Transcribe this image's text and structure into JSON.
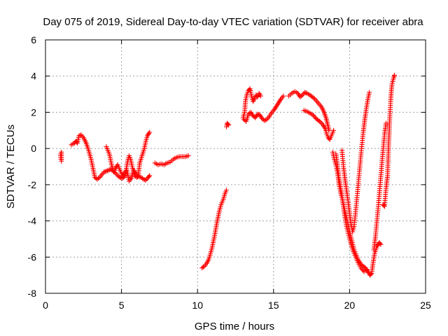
{
  "chart_data": {
    "type": "scatter",
    "title": "Day 075 of 2019, Sidereal Day-to-day VTEC variation (SDTVAR) for receiver abra",
    "xlabel": "GPS time / hours",
    "ylabel": "SDTVAR / TECUs",
    "xlim": [
      0,
      25
    ],
    "ylim": [
      -8,
      6
    ],
    "xticks": [
      0,
      5,
      10,
      15,
      20,
      25
    ],
    "yticks": [
      -8,
      -6,
      -4,
      -2,
      0,
      2,
      4,
      6
    ],
    "xtick_labels": [
      "0",
      "5",
      "10",
      "15",
      "20",
      "25"
    ],
    "ytick_labels": [
      "-8",
      "-6",
      "-4",
      "-2",
      "0",
      "2",
      "4",
      "6"
    ],
    "grid": true,
    "marker": "+",
    "series": [
      {
        "name": "abra",
        "color": "#ff0000",
        "segments": [
          [
            [
              1.0,
              -0.3
            ],
            [
              1.0,
              -0.5
            ],
            [
              1.05,
              -0.7
            ],
            [
              1.05,
              -0.2
            ]
          ],
          [
            [
              1.7,
              0.2
            ],
            [
              1.9,
              0.3
            ],
            [
              2.0,
              0.4
            ],
            [
              2.1,
              0.3
            ],
            [
              2.2,
              0.7
            ],
            [
              2.35,
              0.75
            ],
            [
              2.5,
              0.6
            ],
            [
              2.65,
              0.35
            ],
            [
              2.8,
              0.0
            ],
            [
              2.9,
              -0.3
            ],
            [
              3.0,
              -0.6
            ],
            [
              3.1,
              -1.0
            ],
            [
              3.2,
              -1.4
            ],
            [
              3.25,
              -1.6
            ],
            [
              3.4,
              -1.7
            ],
            [
              3.55,
              -1.6
            ],
            [
              3.7,
              -1.45
            ],
            [
              3.85,
              -1.3
            ],
            [
              4.0,
              -1.25
            ],
            [
              4.15,
              -1.2
            ],
            [
              4.3,
              -1.15
            ],
            [
              4.45,
              -1.25
            ],
            [
              4.6,
              -1.35
            ],
            [
              4.75,
              -1.5
            ],
            [
              4.9,
              -1.6
            ],
            [
              5.05,
              -1.65
            ],
            [
              5.2,
              -1.55
            ],
            [
              5.3,
              -1.2
            ],
            [
              5.4,
              -0.7
            ],
            [
              5.5,
              -0.4
            ],
            [
              5.6,
              -0.6
            ],
            [
              5.7,
              -1.0
            ],
            [
              5.8,
              -1.3
            ],
            [
              5.9,
              -1.55
            ],
            [
              6.0,
              -1.6
            ],
            [
              6.1,
              -1.5
            ],
            [
              6.2,
              -0.8
            ],
            [
              6.35,
              -0.4
            ],
            [
              6.5,
              0.0
            ],
            [
              6.6,
              0.4
            ],
            [
              6.7,
              0.7
            ],
            [
              6.85,
              0.9
            ]
          ],
          [
            [
              4.0,
              0.1
            ],
            [
              4.2,
              -0.3
            ],
            [
              4.35,
              -0.9
            ],
            [
              4.5,
              -1.3
            ],
            [
              4.6,
              -1.1
            ],
            [
              4.75,
              -0.9
            ],
            [
              4.9,
              -1.2
            ],
            [
              5.05,
              -1.5
            ],
            [
              5.35,
              -1.2
            ],
            [
              5.5,
              -1.8
            ],
            [
              5.65,
              -1.65
            ],
            [
              5.8,
              -1.2
            ],
            [
              5.95,
              -1.4
            ],
            [
              6.1,
              -1.55
            ],
            [
              6.3,
              -1.6
            ],
            [
              6.45,
              -1.7
            ],
            [
              6.6,
              -1.75
            ],
            [
              6.75,
              -1.6
            ],
            [
              6.85,
              -1.5
            ]
          ],
          [
            [
              7.2,
              -0.8
            ],
            [
              7.4,
              -0.9
            ],
            [
              7.6,
              -0.85
            ],
            [
              7.8,
              -0.9
            ],
            [
              8.0,
              -0.8
            ],
            [
              8.2,
              -0.75
            ],
            [
              8.4,
              -0.6
            ],
            [
              8.6,
              -0.5
            ],
            [
              8.8,
              -0.45
            ],
            [
              9.0,
              -0.45
            ],
            [
              9.2,
              -0.45
            ],
            [
              9.4,
              -0.4
            ]
          ],
          [
            [
              10.3,
              -6.6
            ],
            [
              10.45,
              -6.5
            ],
            [
              10.6,
              -6.35
            ],
            [
              10.75,
              -6.1
            ],
            [
              10.85,
              -5.8
            ],
            [
              10.95,
              -5.5
            ],
            [
              11.05,
              -5.1
            ],
            [
              11.15,
              -4.7
            ],
            [
              11.25,
              -4.2
            ],
            [
              11.35,
              -3.8
            ],
            [
              11.45,
              -3.4
            ],
            [
              11.55,
              -3.1
            ],
            [
              11.7,
              -2.8
            ],
            [
              11.8,
              -2.5
            ],
            [
              11.9,
              -2.3
            ]
          ],
          [
            [
              11.9,
              1.2
            ],
            [
              11.95,
              1.4
            ],
            [
              12.05,
              1.3
            ]
          ],
          [
            [
              13.0,
              1.7
            ],
            [
              13.1,
              2.0
            ],
            [
              13.15,
              2.6
            ],
            [
              13.25,
              3.0
            ],
            [
              13.35,
              3.2
            ],
            [
              13.45,
              3.3
            ],
            [
              13.55,
              2.9
            ],
            [
              13.65,
              2.6
            ],
            [
              13.75,
              2.75
            ],
            [
              13.85,
              2.95
            ],
            [
              13.95,
              2.85
            ],
            [
              14.05,
              3.05
            ],
            [
              14.15,
              2.9
            ]
          ],
          [
            [
              13.05,
              1.6
            ],
            [
              13.2,
              1.5
            ],
            [
              13.35,
              1.9
            ],
            [
              13.5,
              2.0
            ],
            [
              13.65,
              1.8
            ],
            [
              13.8,
              1.7
            ],
            [
              13.95,
              1.9
            ],
            [
              14.1,
              1.85
            ],
            [
              14.25,
              1.65
            ],
            [
              14.4,
              1.55
            ],
            [
              14.55,
              1.6
            ],
            [
              14.7,
              1.75
            ],
            [
              14.9,
              2.0
            ],
            [
              15.05,
              2.15
            ],
            [
              15.2,
              2.35
            ],
            [
              15.35,
              2.55
            ],
            [
              15.5,
              2.75
            ],
            [
              15.65,
              2.9
            ]
          ],
          [
            [
              16.0,
              2.9
            ],
            [
              16.2,
              3.05
            ],
            [
              16.4,
              3.15
            ],
            [
              16.6,
              3.05
            ],
            [
              16.75,
              2.85
            ],
            [
              16.9,
              2.95
            ],
            [
              17.05,
              3.1
            ],
            [
              17.2,
              3.05
            ],
            [
              17.4,
              2.95
            ],
            [
              17.55,
              2.85
            ],
            [
              17.7,
              2.75
            ],
            [
              17.85,
              2.6
            ],
            [
              18.0,
              2.45
            ],
            [
              18.15,
              2.3
            ],
            [
              18.3,
              2.05
            ],
            [
              18.45,
              1.7
            ],
            [
              18.55,
              1.35
            ],
            [
              18.65,
              1.0
            ]
          ],
          [
            [
              17.0,
              2.1
            ],
            [
              17.2,
              2.05
            ],
            [
              17.4,
              1.95
            ],
            [
              17.6,
              1.85
            ],
            [
              17.8,
              1.65
            ],
            [
              17.95,
              1.55
            ],
            [
              18.1,
              1.45
            ],
            [
              18.25,
              1.3
            ],
            [
              18.4,
              1.1
            ],
            [
              18.5,
              0.8
            ],
            [
              18.6,
              0.6
            ],
            [
              18.7,
              0.5
            ],
            [
              18.85,
              0.8
            ],
            [
              18.95,
              1.0
            ]
          ],
          [
            [
              18.9,
              -0.2
            ],
            [
              19.0,
              -0.6
            ],
            [
              19.1,
              -0.9
            ],
            [
              19.2,
              -1.3
            ],
            [
              19.3,
              -1.9
            ],
            [
              19.4,
              -2.4
            ],
            [
              19.55,
              -2.9
            ],
            [
              19.7,
              -3.5
            ],
            [
              19.85,
              -4.0
            ],
            [
              20.0,
              -4.6
            ],
            [
              20.15,
              -5.1
            ],
            [
              20.3,
              -5.6
            ],
            [
              20.45,
              -5.9
            ],
            [
              20.6,
              -6.2
            ],
            [
              20.75,
              -6.4
            ],
            [
              20.9,
              -6.5
            ],
            [
              21.05,
              -6.6
            ],
            [
              21.2,
              -6.8
            ],
            [
              21.35,
              -7.0
            ],
            [
              21.45,
              -6.9
            ],
            [
              21.55,
              -6.3
            ],
            [
              21.65,
              -5.8
            ],
            [
              21.8,
              -5.4
            ],
            [
              21.95,
              -5.2
            ],
            [
              22.05,
              -5.3
            ]
          ],
          [
            [
              19.1,
              -0.3
            ],
            [
              19.2,
              -0.9
            ],
            [
              19.3,
              -1.6
            ],
            [
              19.4,
              -2.1
            ],
            [
              19.5,
              -2.6
            ],
            [
              19.6,
              -3.2
            ],
            [
              19.7,
              -3.8
            ],
            [
              19.8,
              -4.3
            ],
            [
              19.95,
              -4.8
            ],
            [
              20.1,
              -5.3
            ],
            [
              20.25,
              -5.7
            ],
            [
              20.4,
              -6.0
            ],
            [
              20.55,
              -6.3
            ],
            [
              20.75,
              -6.6
            ],
            [
              20.95,
              -6.8
            ],
            [
              21.15,
              -6.7
            ]
          ],
          [
            [
              19.5,
              -0.1
            ],
            [
              19.6,
              -1.0
            ],
            [
              19.7,
              -1.7
            ],
            [
              19.8,
              -2.3
            ],
            [
              19.9,
              -2.9
            ],
            [
              20.0,
              -3.6
            ],
            [
              20.1,
              -4.2
            ],
            [
              20.2,
              -4.6
            ],
            [
              20.3,
              -4.3
            ],
            [
              20.4,
              -3.5
            ],
            [
              20.5,
              -2.6
            ],
            [
              20.6,
              -1.7
            ],
            [
              20.7,
              -0.8
            ],
            [
              20.8,
              0.1
            ],
            [
              20.9,
              0.9
            ],
            [
              21.0,
              1.6
            ],
            [
              21.1,
              2.2
            ],
            [
              21.2,
              2.7
            ],
            [
              21.3,
              3.1
            ]
          ],
          [
            [
              21.6,
              -5.6
            ],
            [
              21.7,
              -4.9
            ],
            [
              21.8,
              -4.0
            ],
            [
              21.9,
              -3.1
            ],
            [
              22.0,
              -2.1
            ],
            [
              22.1,
              -1.1
            ],
            [
              22.2,
              -0.1
            ],
            [
              22.3,
              0.8
            ],
            [
              22.4,
              1.4
            ]
          ],
          [
            [
              22.2,
              -3.1
            ],
            [
              22.3,
              -3.2
            ],
            [
              22.4,
              -2.2
            ],
            [
              22.5,
              -1.5
            ],
            [
              22.55,
              -0.2
            ],
            [
              22.6,
              0.8
            ],
            [
              22.65,
              1.8
            ],
            [
              22.7,
              2.6
            ],
            [
              22.75,
              3.2
            ],
            [
              22.8,
              3.6
            ],
            [
              22.9,
              3.9
            ],
            [
              22.95,
              4.05
            ]
          ]
        ]
      }
    ]
  }
}
